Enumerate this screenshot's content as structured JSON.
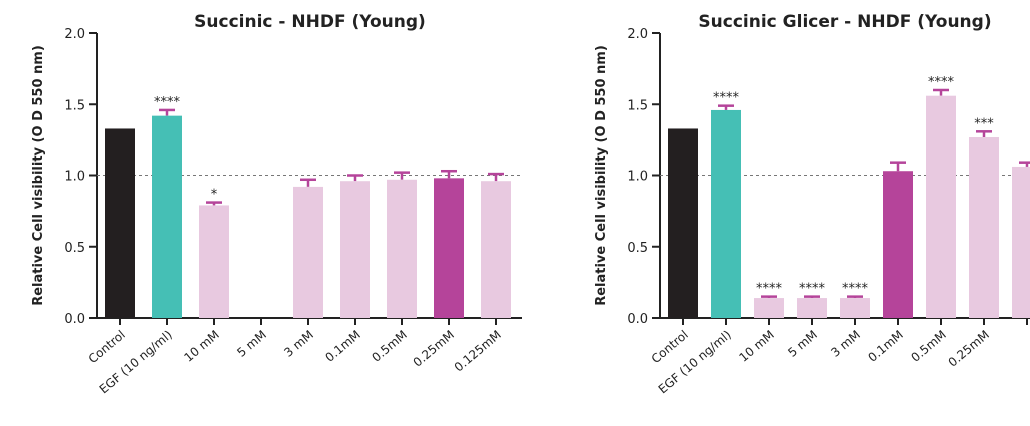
{
  "chart_data": [
    {
      "type": "bar",
      "title": "Succinic - NHDF (Young)",
      "y_label": "Relative Cell visibility (O D 550 nm)",
      "categories": [
        "Control",
        "EGF (10 ng/ml)",
        "10 mM",
        "5 mM",
        "3 mM",
        "0.1mM",
        "0.5mM",
        "0.25mM",
        "0.125mM"
      ],
      "values": [
        1.33,
        1.42,
        0.79,
        null,
        0.92,
        0.96,
        0.97,
        0.98,
        0.96
      ],
      "errors": [
        null,
        0.04,
        0.02,
        null,
        0.05,
        0.04,
        0.05,
        0.05,
        0.05
      ],
      "annotations": [
        null,
        "****",
        "*",
        null,
        null,
        null,
        null,
        null,
        null
      ],
      "colors": [
        "#231f20",
        "#45bfb5",
        "#e8c9e0",
        "#e8c9e0",
        "#e8c9e0",
        "#e8c9e0",
        "#e8c9e0",
        "#b5449a",
        "#e8c9e0"
      ],
      "error_color": "#b5449a",
      "reference_line": 1,
      "ylim": [
        0,
        2
      ],
      "yticks": [
        {
          "value": 0,
          "label": "0.0"
        },
        0.5,
        {
          "value": 1,
          "label": "1.0"
        },
        1.5,
        {
          "value": 2,
          "label": "2.0"
        }
      ]
    },
    {
      "type": "bar",
      "title": "Succinic Glicer - NHDF (Young)",
      "y_label": "Relative Cell visibility (O D 550 nm)",
      "categories": [
        "Control",
        "EGF (10 ng/ml)",
        "10 mM",
        "5 mM",
        "3 mM",
        "0.1mM",
        "0.5mM",
        "0.25mM",
        null
      ],
      "values": [
        1.33,
        1.46,
        0.14,
        0.14,
        0.14,
        1.03,
        1.56,
        1.27,
        1.06
      ],
      "errors": [
        null,
        0.03,
        0.01,
        0.01,
        0.01,
        0.06,
        0.04,
        0.04,
        0.03
      ],
      "annotations": [
        null,
        "****",
        "****",
        "****",
        "****",
        null,
        "****",
        "***",
        null
      ],
      "colors": [
        "#231f20",
        "#45bfb5",
        "#e8c9e0",
        "#e8c9e0",
        "#e8c9e0",
        "#b5449a",
        "#e8c9e0",
        "#e8c9e0",
        "#e8c9e0"
      ],
      "error_color": "#b5449a",
      "reference_line": 1,
      "ylim": [
        0,
        2
      ],
      "yticks": [
        {
          "value": 0,
          "label": "0.0"
        },
        0.5,
        {
          "value": 1,
          "label": "1.0"
        },
        1.5,
        {
          "value": 2,
          "label": "2.0"
        }
      ]
    }
  ]
}
